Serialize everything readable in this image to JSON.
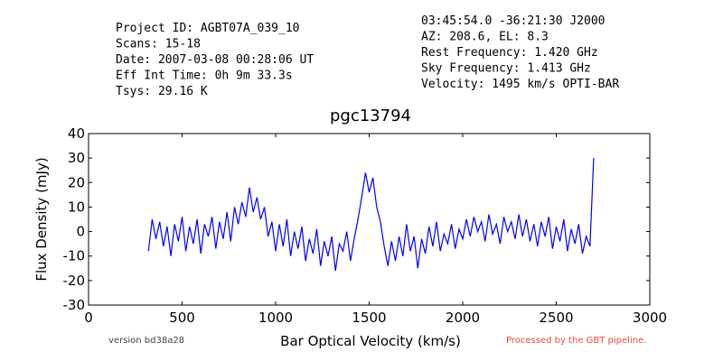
{
  "chart_data": {
    "type": "line",
    "header_left": [
      "Project ID: AGBT07A_039_10",
      "Scans: 15-18",
      "Date: 2007-03-08 00:28:06 UT",
      "Eff Int Time: 0h 9m 33.3s",
      "Tsys: 29.16 K"
    ],
    "header_right": [
      "03:45:54.0 -36:21:30 J2000",
      "AZ: 208.6, EL: 8.3",
      "Rest Frequency:   1.420 GHz",
      "Sky Frequency:    1.413 GHz",
      "Velocity: 1495 km/s OPTI-BAR"
    ],
    "title": "pgc13794",
    "xlabel": "Bar Optical Velocity (km/s)",
    "ylabel": "Flux Density (mJy)",
    "footer_left": "version bd38a28",
    "footer_right": "Processed by the GBT pipeline.",
    "xlim": [
      0,
      3000
    ],
    "xticks": [
      0,
      500,
      1000,
      1500,
      2000,
      2500,
      3000
    ],
    "ylim": [
      -30,
      40
    ],
    "yticks": [
      -30,
      -20,
      -10,
      0,
      10,
      20,
      30,
      40
    ],
    "x": [
      320,
      340,
      360,
      380,
      400,
      420,
      440,
      460,
      480,
      500,
      520,
      540,
      560,
      580,
      600,
      620,
      640,
      660,
      680,
      700,
      720,
      740,
      760,
      780,
      800,
      820,
      840,
      860,
      880,
      900,
      920,
      940,
      960,
      980,
      1000,
      1020,
      1040,
      1060,
      1080,
      1100,
      1120,
      1140,
      1160,
      1180,
      1200,
      1220,
      1240,
      1260,
      1280,
      1300,
      1320,
      1340,
      1360,
      1380,
      1400,
      1420,
      1440,
      1460,
      1480,
      1500,
      1520,
      1540,
      1560,
      1580,
      1600,
      1620,
      1640,
      1660,
      1680,
      1700,
      1720,
      1740,
      1760,
      1780,
      1800,
      1820,
      1840,
      1860,
      1880,
      1900,
      1920,
      1940,
      1960,
      1980,
      2000,
      2020,
      2040,
      2060,
      2080,
      2100,
      2120,
      2140,
      2160,
      2180,
      2200,
      2220,
      2240,
      2260,
      2280,
      2300,
      2320,
      2340,
      2360,
      2380,
      2400,
      2420,
      2440,
      2460,
      2480,
      2500,
      2520,
      2540,
      2560,
      2580,
      2600,
      2620,
      2640,
      2660,
      2680,
      2700
    ],
    "series": [
      {
        "name": "spectrum",
        "color": "#0000ff",
        "values": [
          -8,
          5,
          -3,
          4,
          -6,
          2,
          -10,
          3,
          -4,
          6,
          -8,
          2,
          -5,
          5,
          -9,
          3,
          -2,
          6,
          -7,
          4,
          -3,
          8,
          -4,
          10,
          3,
          12,
          6,
          18,
          8,
          14,
          5,
          10,
          -2,
          4,
          -8,
          3,
          -6,
          5,
          -10,
          0,
          -7,
          2,
          -12,
          -3,
          -9,
          1,
          -14,
          -4,
          -10,
          -2,
          -16,
          -5,
          -8,
          0,
          -12,
          -3,
          5,
          14,
          24,
          16,
          22,
          10,
          4,
          -6,
          -14,
          -4,
          -12,
          -2,
          -10,
          3,
          -8,
          -2,
          -15,
          -3,
          -9,
          2,
          -6,
          4,
          -8,
          -1,
          -5,
          3,
          -7,
          1,
          -3,
          5,
          -2,
          6,
          0,
          4,
          -4,
          7,
          -1,
          3,
          -5,
          6,
          0,
          4,
          -3,
          7,
          -2,
          5,
          -4,
          3,
          -6,
          4,
          -2,
          6,
          -7,
          2,
          -4,
          5,
          -8,
          1,
          -5,
          3,
          -9,
          -2,
          -6,
          30
        ]
      }
    ]
  }
}
